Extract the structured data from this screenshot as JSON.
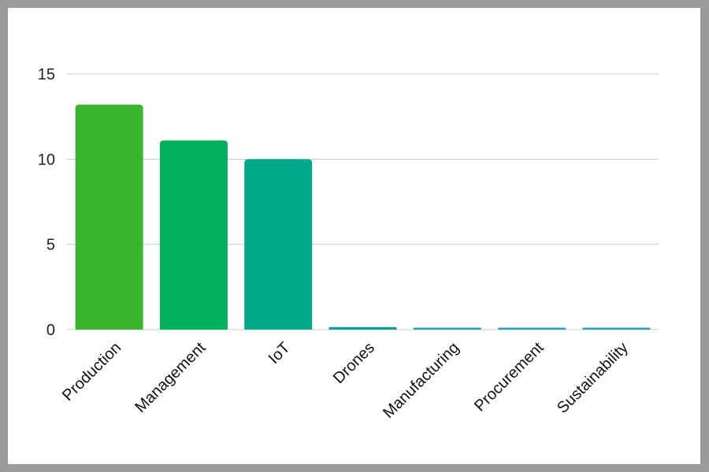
{
  "chart_data": {
    "type": "bar",
    "title": "",
    "xlabel": "",
    "ylabel": "",
    "categories": [
      "Production",
      "Management",
      "IoT",
      "Drones",
      "Manufacturing",
      "Procurement",
      "Sustainability"
    ],
    "values": [
      13.2,
      11.1,
      10.0,
      0.15,
      0.05,
      0.05,
      0.05
    ],
    "ylim": [
      0,
      15
    ],
    "yticks": [
      0,
      5,
      10,
      15
    ],
    "grid": true,
    "legend": "none",
    "colors": [
      "#3bb52d",
      "#00b05a",
      "#00a98a",
      "#0b9f9a",
      "#2aa3b8",
      "#2aa3b8",
      "#2aa3b8"
    ],
    "gridline_color": "#cccccc"
  }
}
